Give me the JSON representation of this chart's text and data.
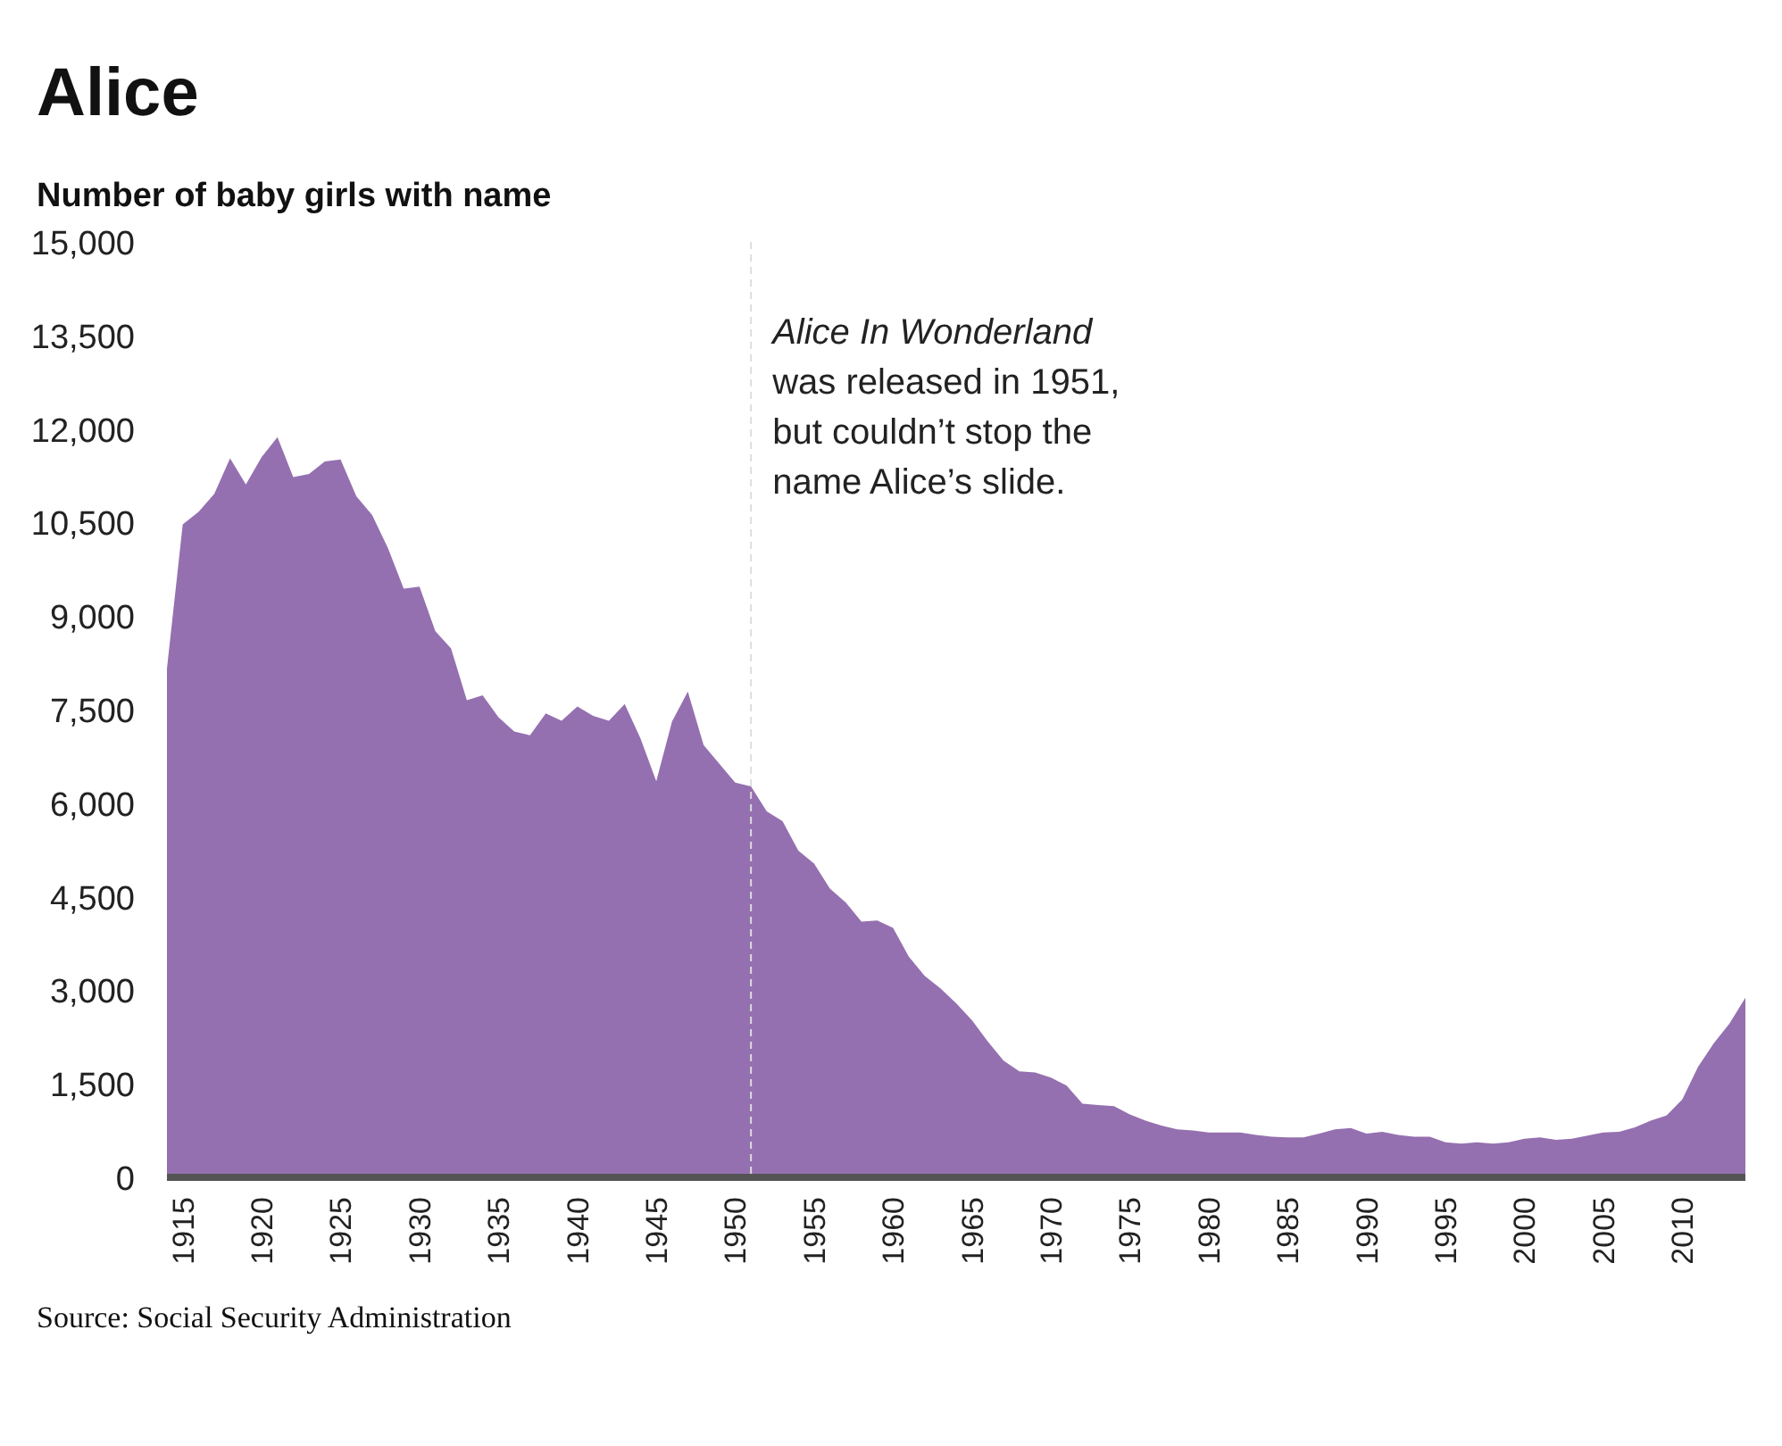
{
  "chart_data": {
    "type": "area",
    "title": "Alice",
    "ylabel": "Number of baby girls with name",
    "x": [
      1914,
      1915,
      1916,
      1917,
      1918,
      1919,
      1920,
      1921,
      1922,
      1923,
      1924,
      1925,
      1926,
      1927,
      1928,
      1929,
      1930,
      1931,
      1932,
      1933,
      1934,
      1935,
      1936,
      1937,
      1938,
      1939,
      1940,
      1941,
      1942,
      1943,
      1944,
      1945,
      1946,
      1947,
      1948,
      1949,
      1950,
      1951,
      1952,
      1953,
      1954,
      1955,
      1956,
      1957,
      1958,
      1959,
      1960,
      1961,
      1962,
      1963,
      1964,
      1965,
      1966,
      1967,
      1968,
      1969,
      1970,
      1971,
      1972,
      1973,
      1974,
      1975,
      1976,
      1977,
      1978,
      1979,
      1980,
      1981,
      1982,
      1983,
      1984,
      1985,
      1986,
      1987,
      1988,
      1989,
      1990,
      1991,
      1992,
      1993,
      1994,
      1995,
      1996,
      1997,
      1998,
      1999,
      2000,
      2001,
      2002,
      2003,
      2004,
      2005,
      2006,
      2007,
      2008,
      2009,
      2010,
      2011,
      2012,
      2013,
      2014
    ],
    "series": [
      {
        "color": "#9570b0",
        "values": [
          8160,
          10470,
          10670,
          10960,
          11530,
          11110,
          11550,
          11870,
          11230,
          11280,
          11480,
          11510,
          10920,
          10620,
          10090,
          9440,
          9470,
          8760,
          8480,
          7650,
          7730,
          7380,
          7150,
          7090,
          7440,
          7320,
          7550,
          7400,
          7320,
          7590,
          7040,
          6350,
          7310,
          7790,
          6930,
          6630,
          6330,
          6270,
          5870,
          5710,
          5240,
          5030,
          4630,
          4410,
          4100,
          4120,
          4000,
          3540,
          3230,
          3030,
          2790,
          2520,
          2180,
          1870,
          1700,
          1680,
          1600,
          1470,
          1180,
          1160,
          1140,
          1010,
          910,
          830,
          770,
          750,
          720,
          720,
          720,
          680,
          650,
          640,
          640,
          700,
          770,
          790,
          700,
          730,
          680,
          650,
          650,
          560,
          540,
          560,
          540,
          560,
          620,
          640,
          600,
          620,
          670,
          720,
          730,
          800,
          910,
          990,
          1250,
          1770,
          2150,
          2470,
          2880
        ]
      }
    ],
    "xlim": [
      1914,
      2014
    ],
    "xticks": [
      1915,
      1920,
      1925,
      1930,
      1935,
      1940,
      1945,
      1950,
      1955,
      1960,
      1965,
      1970,
      1975,
      1980,
      1985,
      1990,
      1995,
      2000,
      2005,
      2010
    ],
    "ylim": [
      0,
      15000
    ],
    "yticks": [
      {
        "value": 0,
        "label": "0"
      },
      {
        "value": 1500,
        "label": "1,500"
      },
      {
        "value": 3000,
        "label": "3,000"
      },
      {
        "value": 4500,
        "label": "4,500"
      },
      {
        "value": 6000,
        "label": "6,000"
      },
      {
        "value": 7500,
        "label": "7,500"
      },
      {
        "value": 9000,
        "label": "9,000"
      },
      {
        "value": 10500,
        "label": "10,500"
      },
      {
        "value": 12000,
        "label": "12,000"
      },
      {
        "value": 13500,
        "label": "13,500"
      },
      {
        "value": 15000,
        "label": "15,000"
      }
    ],
    "ref_lines": [
      {
        "axis": "x",
        "value": 1951,
        "color": "#dddddd",
        "line_style": "dashed",
        "label": "Alice In Wonderland\nwas released in 1951,\nbut couldn’t stop the\nname Alice’s slide."
      }
    ],
    "annotations": [
      "Source: Social Security Administration"
    ],
    "grid": false
  }
}
